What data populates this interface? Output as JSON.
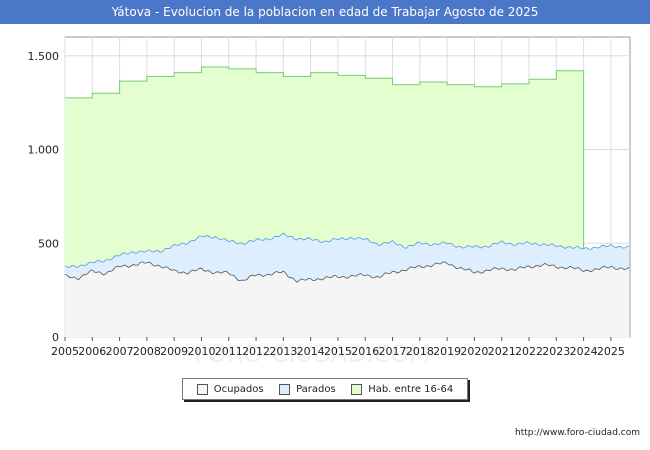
{
  "title": "Yátova - Evolucion de la poblacion en edad de Trabajar Agosto de 2025",
  "source": "http://www.foro-ciudad.com",
  "watermark": "FORO-CIUDAD.COM",
  "colors": {
    "title_bg": "#4b77c8",
    "ocupados_fill": "#f5f5f5",
    "ocupados_line": "#555555",
    "parados_fill": "#ddeeff",
    "parados_line": "#5599dd",
    "hab_fill": "#e3ffcf",
    "hab_line": "#77cc77",
    "grid": "#dddddd"
  },
  "chart_data": {
    "type": "area",
    "title": "Yátova - Evolucion de la poblacion en edad de Trabajar Agosto de 2025",
    "xlabel": "",
    "ylabel": "",
    "xlim": [
      2005,
      2025.7
    ],
    "ylim": [
      0,
      1600
    ],
    "yticks": [
      0,
      500,
      1000,
      1500
    ],
    "ytick_labels": [
      "0",
      "500",
      "1.000",
      "1.500"
    ],
    "xticks": [
      2005,
      2006,
      2007,
      2008,
      2009,
      2010,
      2011,
      2012,
      2013,
      2014,
      2015,
      2016,
      2017,
      2018,
      2019,
      2020,
      2021,
      2022,
      2023,
      2024,
      2025
    ],
    "grid": true,
    "legend_position": "bottom-center",
    "legend": [
      "Ocupados",
      "Parados",
      "Hab. entre 16-64"
    ],
    "hab_annual": {
      "years": [
        2005,
        2006,
        2007,
        2008,
        2009,
        2010,
        2011,
        2012,
        2013,
        2014,
        2015,
        2016,
        2017,
        2018,
        2019,
        2020,
        2021,
        2022,
        2023
      ],
      "values": [
        1275,
        1300,
        1365,
        1390,
        1410,
        1440,
        1430,
        1410,
        1390,
        1410,
        1395,
        1380,
        1345,
        1360,
        1345,
        1335,
        1350,
        1375,
        1420
      ]
    },
    "series": [
      {
        "name": "Ocupados",
        "x": [
          2005.0,
          2005.5,
          2006.0,
          2006.5,
          2007.0,
          2007.5,
          2008.0,
          2008.5,
          2009.0,
          2009.5,
          2010.0,
          2010.5,
          2011.0,
          2011.5,
          2012.0,
          2012.5,
          2013.0,
          2013.5,
          2014.0,
          2014.5,
          2015.0,
          2015.5,
          2016.0,
          2016.5,
          2017.0,
          2017.5,
          2018.0,
          2018.5,
          2019.0,
          2019.5,
          2020.0,
          2020.5,
          2021.0,
          2021.5,
          2022.0,
          2022.5,
          2023.0,
          2023.5,
          2024.0,
          2024.5,
          2025.0,
          2025.6
        ],
        "values": [
          325,
          315,
          350,
          340,
          375,
          385,
          395,
          380,
          350,
          345,
          360,
          345,
          340,
          300,
          330,
          335,
          345,
          300,
          305,
          315,
          320,
          325,
          330,
          320,
          345,
          360,
          375,
          385,
          395,
          365,
          345,
          355,
          365,
          360,
          375,
          385,
          375,
          370,
          355,
          360,
          375,
          360
        ]
      },
      {
        "name": "Parados",
        "x": [
          2005.0,
          2005.5,
          2006.0,
          2006.5,
          2007.0,
          2007.5,
          2008.0,
          2008.5,
          2009.0,
          2009.5,
          2010.0,
          2010.5,
          2011.0,
          2011.5,
          2012.0,
          2012.5,
          2013.0,
          2013.5,
          2014.0,
          2014.5,
          2015.0,
          2015.5,
          2016.0,
          2016.5,
          2017.0,
          2017.5,
          2018.0,
          2018.5,
          2019.0,
          2019.5,
          2020.0,
          2020.5,
          2021.0,
          2021.5,
          2022.0,
          2022.5,
          2023.0,
          2023.5,
          2024.0,
          2024.5,
          2025.0,
          2025.6
        ],
        "values": [
          45,
          65,
          45,
          70,
          60,
          70,
          60,
          80,
          135,
          160,
          175,
          190,
          170,
          200,
          185,
          190,
          200,
          225,
          215,
          195,
          200,
          205,
          190,
          175,
          160,
          120,
          125,
          110,
          105,
          115,
          135,
          130,
          140,
          135,
          125,
          110,
          110,
          110,
          115,
          120,
          110,
          120
        ]
      },
      {
        "name": "Hab. entre 16-64",
        "x": [
          2005,
          2006,
          2007,
          2008,
          2009,
          2010,
          2011,
          2012,
          2013,
          2014,
          2015,
          2016,
          2017,
          2018,
          2019,
          2020,
          2021,
          2022,
          2023
        ],
        "values": [
          1275,
          1300,
          1365,
          1390,
          1410,
          1440,
          1430,
          1410,
          1390,
          1410,
          1395,
          1380,
          1345,
          1360,
          1345,
          1335,
          1350,
          1375,
          1420
        ]
      }
    ]
  }
}
